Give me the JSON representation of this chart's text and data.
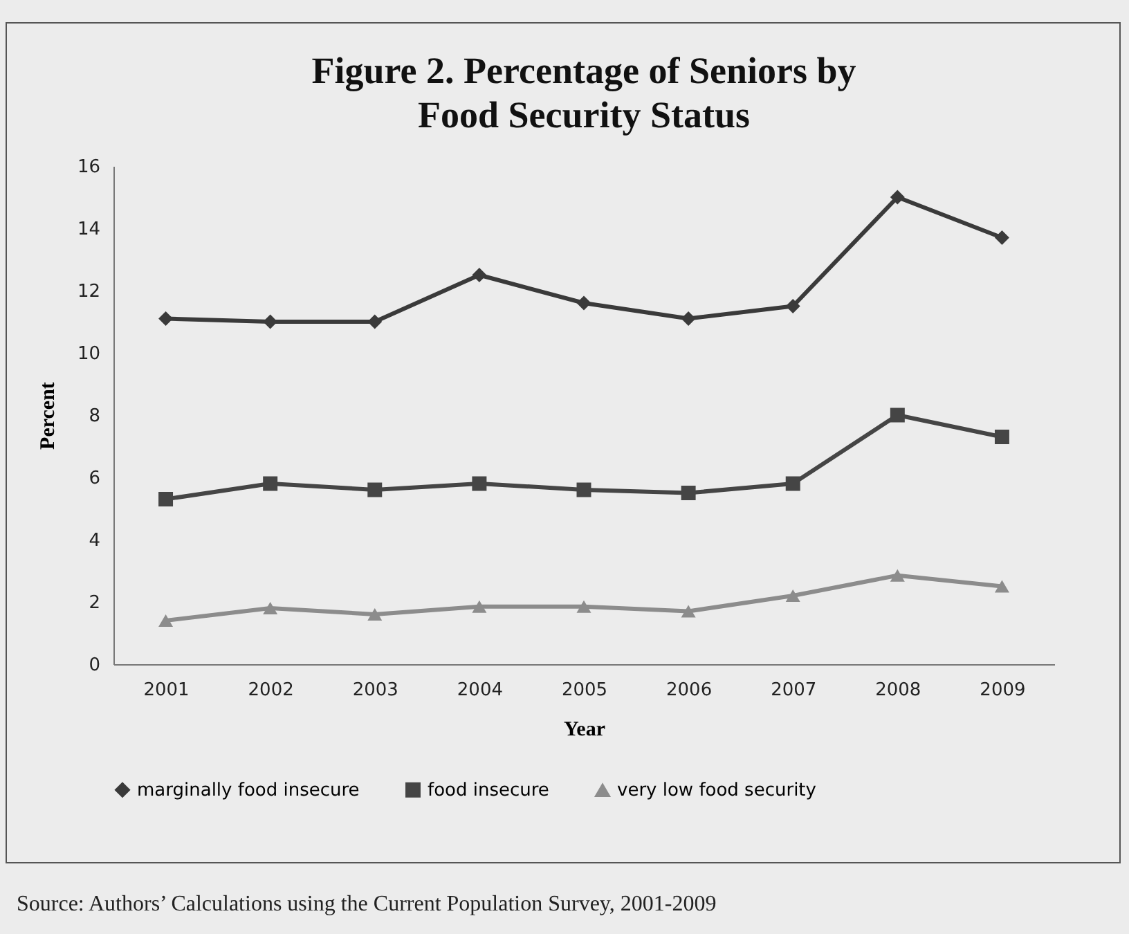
{
  "chart_data": {
    "type": "line",
    "title": "Figure 2. Percentage of Seniors by Food Security Status",
    "xlabel": "Year",
    "ylabel": "Percent",
    "categories": [
      "2001",
      "2002",
      "2003",
      "2004",
      "2005",
      "2006",
      "2007",
      "2008",
      "2009"
    ],
    "series": [
      {
        "name": "marginally food insecure",
        "color": "#3a3a3a",
        "marker": "diamond",
        "values": [
          11.1,
          11.0,
          11.0,
          12.5,
          11.6,
          11.1,
          11.5,
          15.0,
          13.7
        ]
      },
      {
        "name": "food insecure",
        "color": "#454545",
        "marker": "square",
        "values": [
          5.3,
          5.8,
          5.6,
          5.8,
          5.6,
          5.5,
          5.8,
          8.0,
          7.3
        ]
      },
      {
        "name": "very low food security",
        "color": "#8c8c8c",
        "marker": "triangle",
        "values": [
          1.4,
          1.8,
          1.6,
          1.85,
          1.85,
          1.7,
          2.2,
          2.85,
          2.5
        ]
      }
    ],
    "ylim": [
      0,
      16
    ],
    "yticks": [
      0,
      2,
      4,
      6,
      8,
      10,
      12,
      14,
      16
    ],
    "grid": false,
    "legend": "bottom",
    "line_style": "solid",
    "annotations": [
      "Source: Authors’ Calculations using the Current Population Survey, 2001-2009"
    ]
  }
}
